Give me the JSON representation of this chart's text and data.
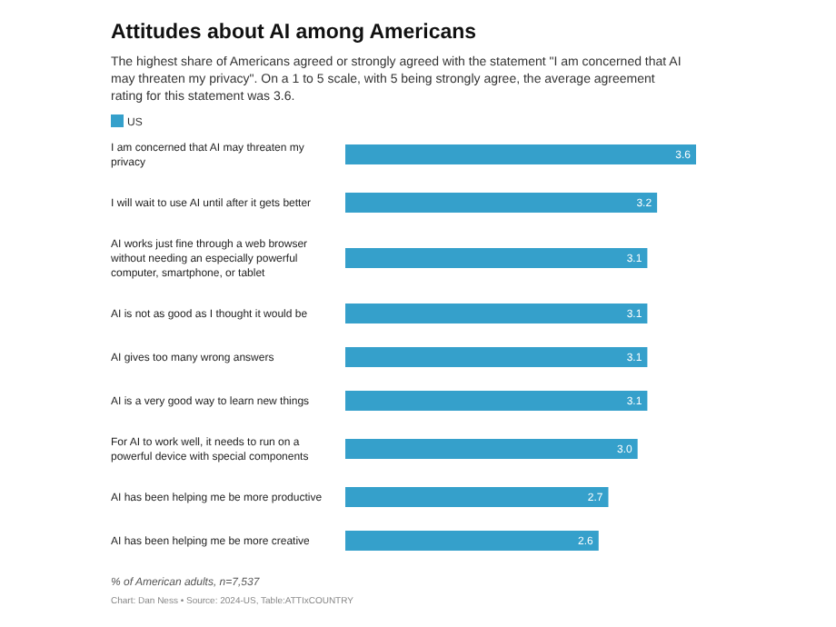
{
  "chart_data": {
    "type": "bar",
    "orientation": "horizontal",
    "title": "Attitudes about AI among Americans",
    "subtitle": "The highest share of Americans agreed or strongly agreed with the statement \"I am concerned that AI may threaten my privacy\". On a 1 to 5 scale, with 5 being strongly agree, the average agreement rating for this statement was 3.6.",
    "categories": [
      "I am concerned that AI may threaten my privacy",
      "I will wait to use AI until after it gets better",
      "AI works just fine through a web browser without needing an especially powerful computer, smartphone, or tablet",
      "AI is not as good as I thought it would be",
      "AI gives too many wrong answers",
      "AI is a very good way to learn new things",
      "For AI to work well, it needs to run on a powerful device with special components",
      "AI has been helping me be more productive",
      "AI has been helping me be more creative"
    ],
    "series": [
      {
        "name": "US",
        "color": "#35a0cb",
        "values": [
          3.6,
          3.2,
          3.1,
          3.1,
          3.1,
          3.1,
          3.0,
          2.7,
          2.6
        ],
        "value_labels": [
          "3.6",
          "3.2",
          "3.1",
          "3.1",
          "3.1",
          "3.1",
          "3.0",
          "2.7",
          "2.6"
        ]
      }
    ],
    "legend": "top left",
    "annotations": [
      "% of American adults, n=7,537",
      "Chart: Dan Ness • Source: 2024-US, Table:ATTIxCOUNTRY"
    ]
  }
}
